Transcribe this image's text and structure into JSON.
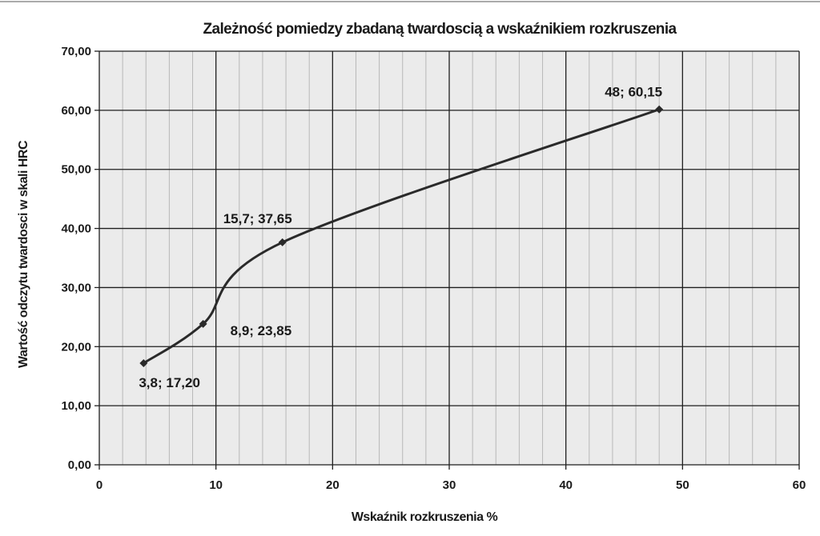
{
  "chart_data": {
    "type": "line",
    "title": "Zależność pomiedzy zbadaną twardoscią a wskaźnikiem rozkruszenia",
    "xlabel": "Wskaźnik rozkruszenia %",
    "ylabel": "Wartość odczytu twardosci w skali HRC",
    "xlim": [
      0,
      60
    ],
    "ylim": [
      0,
      70
    ],
    "x_ticks": [
      0,
      10,
      20,
      30,
      40,
      50,
      60
    ],
    "x_tick_labels": [
      "0",
      "10",
      "20",
      "30",
      "40",
      "50",
      "60"
    ],
    "y_ticks": [
      0,
      10,
      20,
      30,
      40,
      50,
      60,
      70
    ],
    "y_tick_labels": [
      "0,00",
      "10,00",
      "20,00",
      "30,00",
      "40,00",
      "50,00",
      "60,00",
      "70,00"
    ],
    "grid": true,
    "smooth": true,
    "series": [
      {
        "x": [
          3.8,
          8.9,
          15.7,
          48
        ],
        "y": [
          17.2,
          23.85,
          37.65,
          60.15
        ],
        "data_labels": [
          "3,8; 17,20",
          "8,9; 23,85",
          "15,7; 37,65",
          "48; 60,15"
        ]
      }
    ],
    "colors": {
      "background": "#ffffff",
      "plot_area": "#ebebeb",
      "minor_grid": "#b8b8b8",
      "major_grid": "#1e1e1e",
      "line": "#2a2a2a",
      "text": "#1a1a1a"
    }
  }
}
